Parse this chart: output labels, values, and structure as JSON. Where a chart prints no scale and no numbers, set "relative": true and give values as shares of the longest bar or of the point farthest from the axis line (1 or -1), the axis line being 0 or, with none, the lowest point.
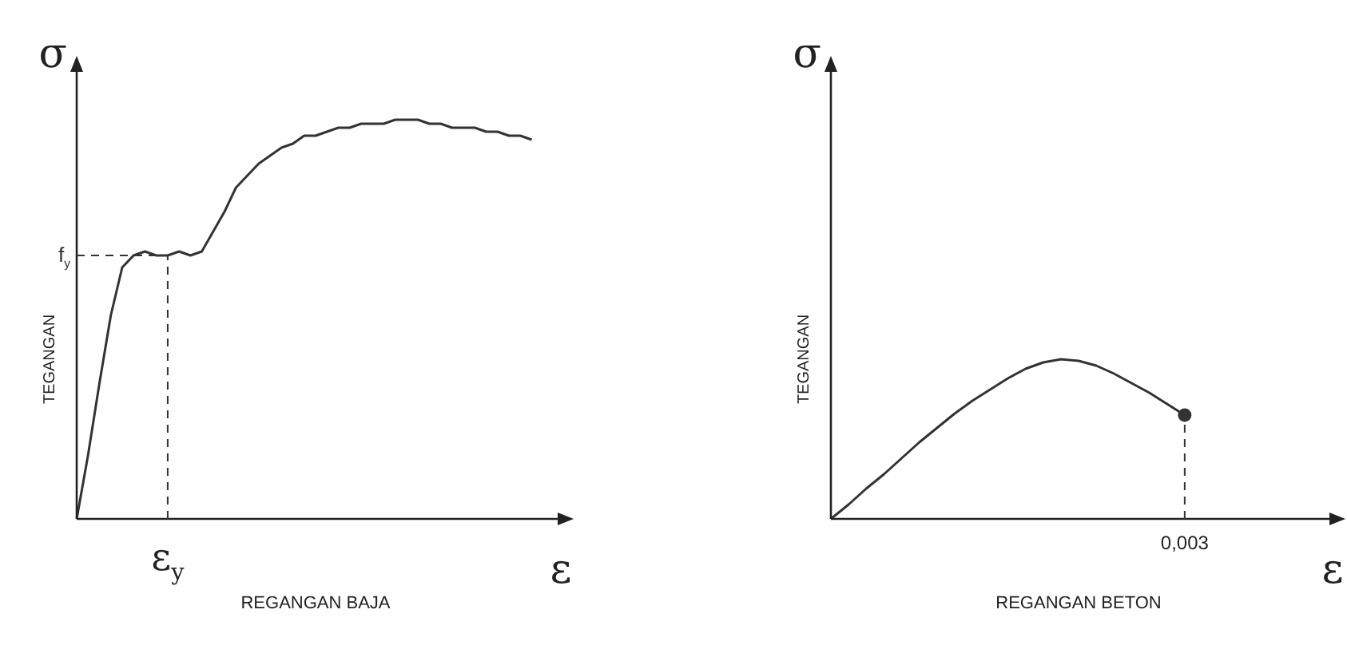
{
  "chart_data": [
    {
      "type": "line",
      "relative": true,
      "xlabel": "REGANGAN BAJA",
      "ylabel": "TEGANGAN",
      "annotations": [
        "σ",
        "ε",
        "ε$_{y}$"
      ],
      "grid": false,
      "legend": false,
      "marker": "none",
      "line_style": "solid",
      "categories": [
        null,
        null,
        null,
        null,
        null,
        null,
        null,
        null,
        null,
        null,
        null,
        null,
        null,
        null,
        null,
        null,
        null,
        null,
        null,
        null,
        null,
        null,
        null,
        null,
        null,
        null,
        null,
        null,
        null,
        null,
        null,
        null,
        null,
        null,
        null,
        null,
        null,
        null,
        null,
        null,
        null,
        null,
        null
      ],
      "series": [
        {
          "color": "#333333",
          "values": [
            0,
            0.16,
            0.34,
            0.51,
            0.63,
            0.66,
            0.67,
            0.66,
            0.66,
            0.67,
            0.66,
            0.67,
            0.72,
            0.77,
            0.83,
            0.86,
            0.89,
            0.91,
            0.93,
            0.94,
            0.96,
            0.96,
            0.97,
            0.98,
            0.98,
            0.99,
            0.99,
            0.99,
            1,
            1,
            1,
            0.99,
            0.99,
            0.98,
            0.98,
            0.98,
            0.97,
            0.97,
            0.96,
            0.96,
            0.95,
            null,
            null
          ]
        }
      ],
      "ref_lines": [
        {
          "axis": "y",
          "value": 0.66,
          "label": "f$_{y}$",
          "line_style": "dashed",
          "color": "#333333"
        }
      ]
    },
    {
      "type": "line",
      "relative": true,
      "xlabel": "REGANGAN BETON",
      "ylabel": "TEGANGAN",
      "annotations": [
        "σ",
        "ε",
        "0,003"
      ],
      "grid": false,
      "legend": false,
      "marker": "none",
      "line_style": "solid",
      "categories": [
        null,
        null,
        null,
        null,
        null,
        null,
        null,
        null,
        null,
        null,
        null,
        null,
        null,
        null,
        null,
        null,
        null,
        null,
        null,
        null,
        null,
        null,
        null,
        null,
        null,
        null,
        null,
        null,
        null
      ],
      "series": [
        {
          "color": "#333333",
          "values": [
            0,
            0.09,
            0.19,
            0.28,
            0.38,
            0.48,
            0.57,
            0.66,
            0.74,
            0.81,
            0.88,
            0.94,
            0.98,
            1,
            0.99,
            0.96,
            0.91,
            0.85,
            0.79,
            0.72,
            0.65,
            null,
            null,
            null,
            null,
            null,
            null,
            null,
            null
          ]
        }
      ]
    }
  ]
}
